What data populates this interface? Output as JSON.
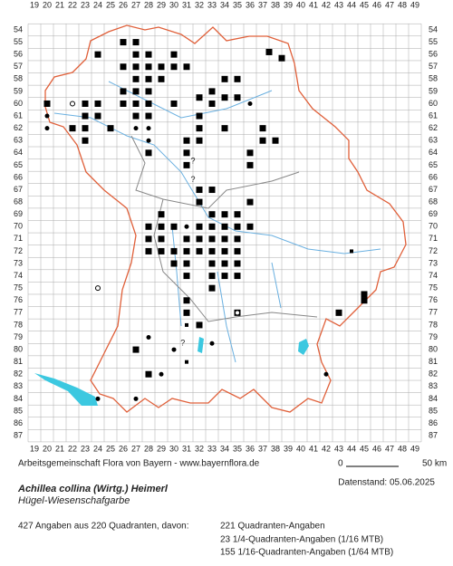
{
  "map": {
    "x_labels": [
      19,
      20,
      21,
      22,
      23,
      24,
      25,
      26,
      27,
      28,
      29,
      30,
      31,
      32,
      33,
      34,
      35,
      36,
      37,
      38,
      39,
      40,
      41,
      42,
      43,
      44,
      45,
      46,
      47,
      48,
      49
    ],
    "y_labels": [
      54,
      55,
      56,
      57,
      58,
      59,
      60,
      61,
      62,
      63,
      64,
      65,
      66,
      67,
      68,
      69,
      70,
      71,
      72,
      73,
      74,
      75,
      76,
      77,
      78,
      79,
      80,
      81,
      82,
      83,
      84,
      85,
      86,
      87
    ],
    "squares": [
      [
        26,
        55
      ],
      [
        27,
        55
      ],
      [
        24,
        56
      ],
      [
        27,
        56
      ],
      [
        28,
        56
      ],
      [
        30,
        56
      ],
      [
        37.5,
        55.8
      ],
      [
        38.5,
        56.3
      ],
      [
        26,
        57
      ],
      [
        27,
        57
      ],
      [
        28,
        57
      ],
      [
        29,
        57
      ],
      [
        30,
        57
      ],
      [
        31,
        57
      ],
      [
        27,
        58
      ],
      [
        28,
        58
      ],
      [
        29,
        58
      ],
      [
        34,
        58
      ],
      [
        26,
        59
      ],
      [
        27,
        59
      ],
      [
        28,
        59
      ],
      [
        33,
        59
      ],
      [
        35,
        58
      ],
      [
        23,
        60
      ],
      [
        24,
        60
      ],
      [
        26,
        60
      ],
      [
        27,
        60
      ],
      [
        28,
        60
      ],
      [
        30,
        60
      ],
      [
        32,
        59.5
      ],
      [
        34,
        59.5
      ],
      [
        35,
        59.5
      ],
      [
        20,
        60
      ],
      [
        23,
        61
      ],
      [
        24,
        61
      ],
      [
        27,
        61
      ],
      [
        28,
        61
      ],
      [
        32,
        61
      ],
      [
        22,
        62
      ],
      [
        23,
        62
      ],
      [
        25,
        62
      ],
      [
        32,
        62
      ],
      [
        34,
        62
      ],
      [
        37,
        62
      ],
      [
        23,
        63
      ],
      [
        31,
        63
      ],
      [
        32,
        63
      ],
      [
        37,
        63
      ],
      [
        38,
        63
      ],
      [
        28,
        64
      ],
      [
        31,
        64
      ],
      [
        36,
        64
      ],
      [
        31,
        65
      ],
      [
        36,
        65
      ],
      [
        32,
        67
      ],
      [
        33,
        67
      ],
      [
        36,
        68
      ],
      [
        32,
        68
      ],
      [
        29,
        69
      ],
      [
        33,
        69
      ],
      [
        34,
        69
      ],
      [
        35,
        69
      ],
      [
        28,
        70
      ],
      [
        29,
        70
      ],
      [
        30,
        70
      ],
      [
        32,
        70
      ],
      [
        33,
        70
      ],
      [
        34,
        70
      ],
      [
        35,
        70
      ],
      [
        36,
        70
      ],
      [
        28,
        71
      ],
      [
        29,
        71
      ],
      [
        31,
        71
      ],
      [
        32,
        71
      ],
      [
        33,
        71
      ],
      [
        34,
        71
      ],
      [
        35,
        71
      ],
      [
        28,
        72
      ],
      [
        29,
        72
      ],
      [
        30,
        72
      ],
      [
        31,
        72
      ],
      [
        32,
        72
      ],
      [
        33,
        72
      ],
      [
        34,
        72
      ],
      [
        35,
        72
      ],
      [
        30,
        73
      ],
      [
        31,
        73
      ],
      [
        33,
        73
      ],
      [
        34,
        73
      ],
      [
        35,
        73
      ],
      [
        31,
        74
      ],
      [
        33,
        74
      ],
      [
        34,
        74
      ],
      [
        35,
        74
      ],
      [
        33,
        75
      ],
      [
        31,
        76
      ],
      [
        31,
        77
      ],
      [
        35,
        77
      ],
      [
        32,
        78
      ],
      [
        27,
        80
      ],
      [
        28,
        82
      ],
      [
        45,
        76
      ],
      [
        45,
        75.5
      ],
      [
        43,
        77
      ],
      [
        33,
        60
      ]
    ],
    "dots": [
      [
        20,
        61
      ],
      [
        20,
        62
      ],
      [
        27,
        62
      ],
      [
        28,
        62
      ],
      [
        36,
        60
      ],
      [
        32,
        63
      ],
      [
        28,
        63
      ],
      [
        31,
        70
      ],
      [
        36,
        70
      ],
      [
        28,
        79
      ],
      [
        29,
        82
      ],
      [
        42,
        82
      ],
      [
        27,
        84
      ],
      [
        33,
        79.5
      ],
      [
        30,
        80
      ],
      [
        24,
        84
      ]
    ],
    "small_squares": [
      [
        23,
        63
      ],
      [
        36,
        70
      ],
      [
        31,
        78
      ],
      [
        31,
        81
      ],
      [
        44,
        72
      ]
    ],
    "open_dots": [
      [
        22,
        60
      ],
      [
        24,
        75
      ],
      [
        35,
        77
      ]
    ],
    "question_marks": [
      {
        "x": 31.5,
        "y": 64.7,
        "label": "?"
      },
      {
        "x": 31.5,
        "y": 66.2,
        "label": "?"
      },
      {
        "x": 30.7,
        "y": 79.5,
        "label": "?"
      }
    ]
  },
  "footer": {
    "credit": "Arbeitsgemeinschaft Flora von Bayern - www.bayernflora.de",
    "scale_start": "0",
    "scale_end": "50 km",
    "date": "Datenstand: 05.06.2025",
    "species": "Achillea collina (Wirtg.) Heimerl",
    "common_name": "Hügel-Wiesenschafgarbe",
    "summary": "427 Angaben aus 220 Quadranten, davon:",
    "counts": [
      "221 Quadranten-Angaben",
      "23 1/4-Quadranten-Angaben (1/16 MTB)",
      "155 1/16-Quadranten-Angaben (1/64 MTB)"
    ]
  }
}
